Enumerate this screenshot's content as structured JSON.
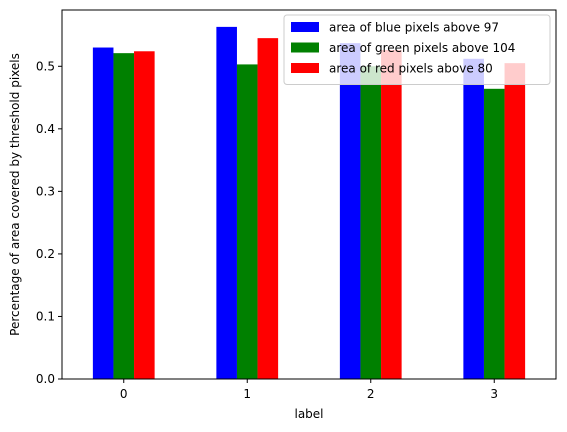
{
  "chart_data": {
    "type": "bar",
    "categories": [
      "0",
      "1",
      "2",
      "3"
    ],
    "series": [
      {
        "name": "area of blue pixels above 97",
        "color": "#0000ff",
        "values": [
          0.53,
          0.563,
          0.537,
          0.512
        ]
      },
      {
        "name": "area of green pixels above 104",
        "color": "#008000",
        "values": [
          0.521,
          0.503,
          0.5,
          0.464
        ]
      },
      {
        "name": "area of red pixels above 80",
        "color": "#ff0000",
        "values": [
          0.524,
          0.545,
          0.526,
          0.505
        ]
      }
    ],
    "title": "",
    "xlabel": "label",
    "ylabel": "Percentage of area covered by threshold pixels",
    "ylim": [
      0,
      0.59
    ],
    "yticks": [
      "0.0",
      "0.1",
      "0.2",
      "0.3",
      "0.4",
      "0.5"
    ],
    "grid": false,
    "legend_position": "top-right"
  }
}
